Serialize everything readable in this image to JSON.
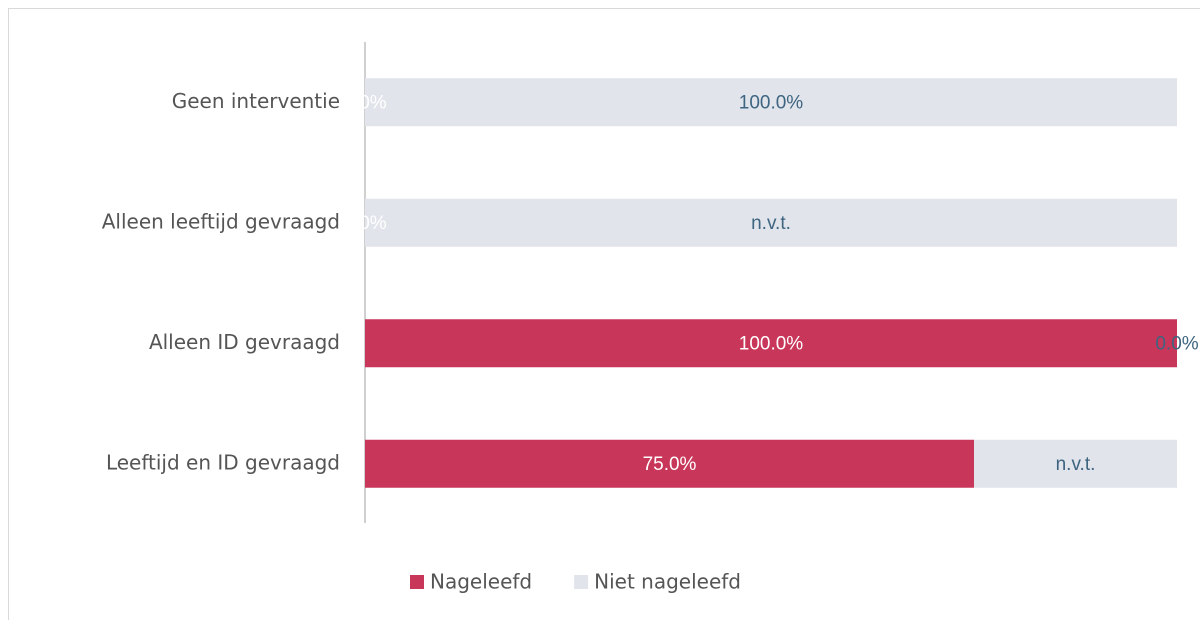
{
  "chart_data": {
    "type": "stacked-bar-horizontal",
    "categories": [
      "Geen interventie",
      "Alleen leeftijd gevraagd",
      "Alleen ID gevraagd",
      "Leeftijd en ID gevraagd"
    ],
    "series": [
      {
        "name": "Nageleefd",
        "color": "#c8375a",
        "label_color": "#ffffff",
        "values": [
          0,
          0,
          100,
          75
        ],
        "value_labels": [
          "0.0%",
          "0.0%",
          "100.0%",
          "75.0%"
        ]
      },
      {
        "name": "Niet nageleefd",
        "color": "#e1e4eb",
        "label_color": "#3d6480",
        "values": [
          100,
          100,
          0,
          25
        ],
        "value_labels": [
          "100.0%",
          "n.v.t.",
          "0.0%",
          "n.v.t."
        ]
      }
    ],
    "xlim": [
      0,
      100
    ]
  }
}
